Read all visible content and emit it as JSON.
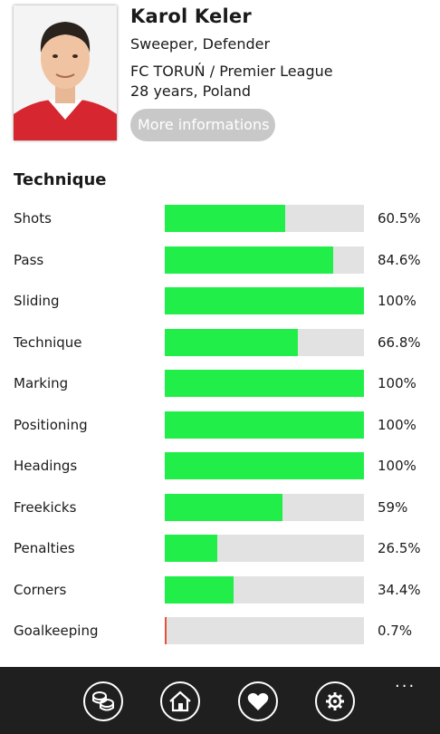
{
  "player": {
    "name": "Karol Keler",
    "position": "Sweeper, Defender",
    "club": "FC TORUŃ / Premier League",
    "age_country": "28 years, Poland",
    "more_button": "More informations"
  },
  "section": {
    "title": "Technique"
  },
  "stats": [
    {
      "label": "Shots",
      "value": "60.5%",
      "fraction": 0.605
    },
    {
      "label": "Pass",
      "value": "84.6%",
      "fraction": 0.846
    },
    {
      "label": "Sliding",
      "value": "100%",
      "fraction": 1.0
    },
    {
      "label": "Technique",
      "value": "66.8%",
      "fraction": 0.668
    },
    {
      "label": "Marking",
      "value": "100%",
      "fraction": 1.0
    },
    {
      "label": "Positioning",
      "value": "100%",
      "fraction": 1.0
    },
    {
      "label": "Headings",
      "value": "100%",
      "fraction": 1.0
    },
    {
      "label": "Freekicks",
      "value": "59%",
      "fraction": 0.59
    },
    {
      "label": "Penalties",
      "value": "26.5%",
      "fraction": 0.265
    },
    {
      "label": "Corners",
      "value": "34.4%",
      "fraction": 0.344
    },
    {
      "label": "Goalkeeping",
      "value": "0.7%",
      "fraction": 0.007
    }
  ],
  "colors": {
    "bar_fill": "#22ee4a",
    "bar_low": "#e8503a",
    "bar_track": "#e2e2e2",
    "button_bg": "#c8c8c8",
    "appbar_bg": "#1f1f1f"
  },
  "appbar": {
    "buttons": [
      "coins-icon",
      "home-icon",
      "heart-icon",
      "gear-icon"
    ],
    "more": "..."
  }
}
